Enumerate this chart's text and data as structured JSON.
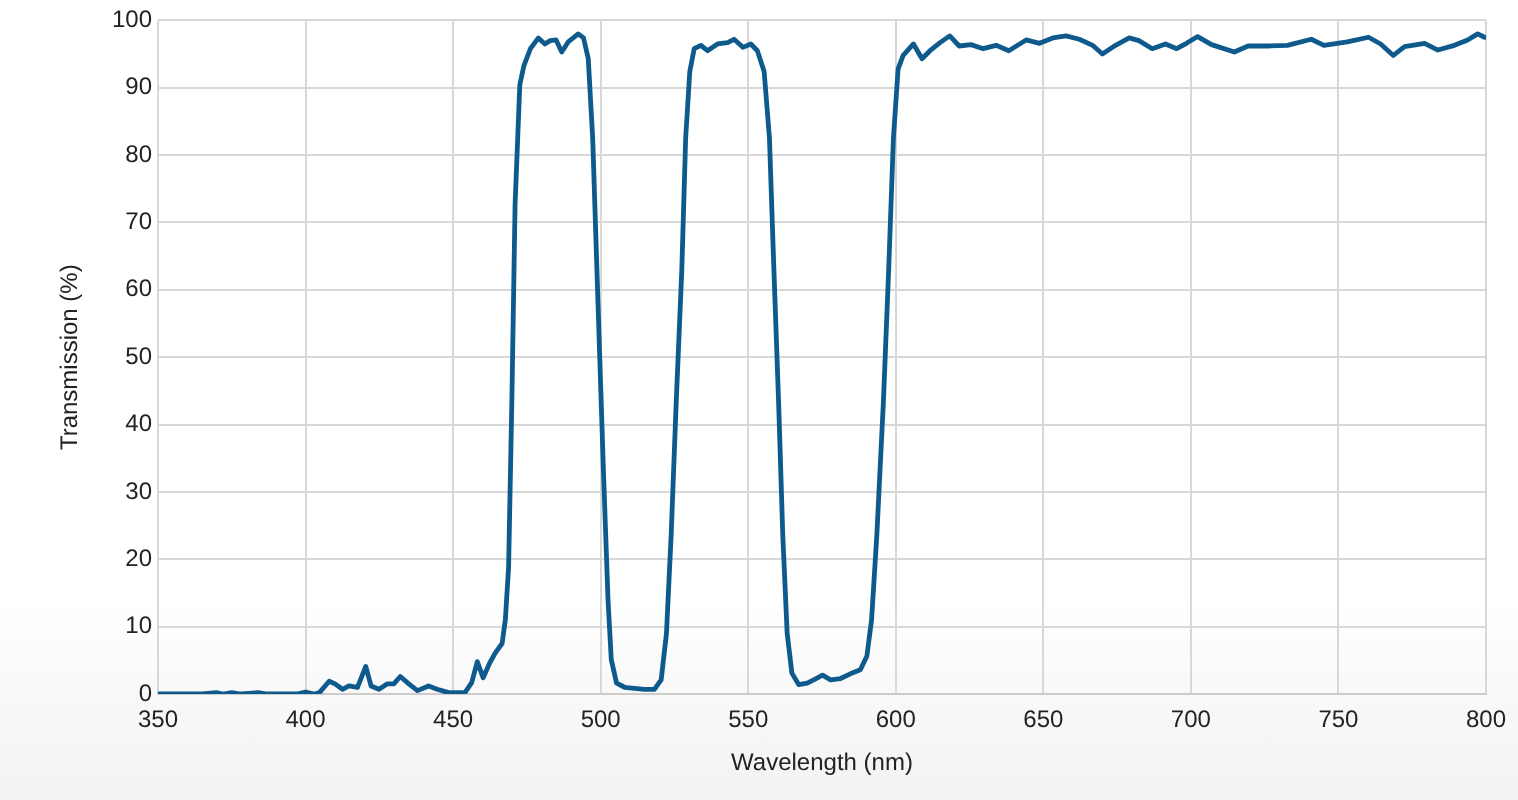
{
  "chart_data": {
    "type": "line",
    "xlabel": "Wavelength (nm)",
    "ylabel": "Transmission (%)",
    "x": [
      350,
      365,
      369.8,
      372,
      375,
      378,
      384,
      387,
      397,
      400,
      403,
      404.7,
      408,
      410,
      412.5,
      414.7,
      417.6,
      420.4,
      422.2,
      424.9,
      427.6,
      429.9,
      432.1,
      435,
      437.9,
      441.7,
      444.6,
      448.5,
      454,
      456.3,
      458.2,
      460.2,
      462.4,
      464.3,
      466.6,
      467.7,
      468.8,
      469.9,
      471,
      472.6,
      474,
      476.2,
      478.9,
      481.1,
      482.9,
      484.9,
      486.8,
      489,
      492.4,
      494.2,
      495.8,
      497.3,
      499.1,
      500.9,
      502.5,
      503.6,
      505.4,
      508.1,
      514.9,
      518.2,
      520.5,
      522.3,
      523.9,
      525.6,
      527.5,
      528.8,
      530.2,
      531.7,
      534,
      536.2,
      539.6,
      543,
      545.2,
      548.2,
      550.9,
      553.1,
      555.4,
      557.2,
      558.7,
      560.3,
      561.7,
      563.2,
      564.8,
      567.1,
      570,
      572.2,
      575.2,
      577.9,
      581.3,
      584.6,
      588,
      590.2,
      591.8,
      593.6,
      595.8,
      597.6,
      599.2,
      600.8,
      602.5,
      606,
      608.9,
      611.6,
      615,
      618.3,
      621.5,
      625.5,
      629.6,
      634,
      638.3,
      644.2,
      648.7,
      653.2,
      657.7,
      662.2,
      666.7,
      670,
      674.5,
      679.1,
      682.4,
      686.9,
      691.4,
      695.2,
      698.5,
      702.3,
      707,
      714.7,
      719.4,
      726,
      732.7,
      740.8,
      745.1,
      753,
      760.2,
      764.3,
      768.6,
      772.4,
      779.2,
      783.7,
      789.3,
      793.8,
      797.2,
      799.5
    ],
    "values": [
      0,
      0,
      0.2,
      0,
      0.2,
      0,
      0.2,
      0,
      0,
      0.3,
      0,
      0.2,
      1.9,
      1.5,
      0.7,
      1.2,
      1.0,
      4.1,
      1.2,
      0.7,
      1.5,
      1.5,
      2.6,
      1.5,
      0.5,
      1.2,
      0.7,
      0.2,
      0.2,
      1.7,
      4.8,
      2.4,
      4.6,
      6.1,
      7.5,
      11,
      18.8,
      43.3,
      72.7,
      90.4,
      93.3,
      95.8,
      97.4,
      96.5,
      97.0,
      97.1,
      95.3,
      96.8,
      98.0,
      97.4,
      94.3,
      82.5,
      58,
      33.6,
      13.9,
      5.1,
      1.6,
      1.0,
      0.7,
      0.7,
      2.1,
      9,
      23.7,
      43.3,
      63,
      82.5,
      92.4,
      95.8,
      96.3,
      95.5,
      96.5,
      96.7,
      97.2,
      96.0,
      96.5,
      95.5,
      92.4,
      82.5,
      63,
      43.3,
      23.7,
      9,
      3.1,
      1.4,
      1.6,
      2.1,
      2.8,
      2.1,
      2.3,
      3.0,
      3.6,
      5.6,
      11,
      23.7,
      43.3,
      63,
      82.5,
      92.8,
      94.8,
      96.5,
      94.3,
      95.5,
      96.7,
      97.7,
      96.2,
      96.4,
      95.8,
      96.3,
      95.5,
      97.1,
      96.6,
      97.4,
      97.7,
      97.2,
      96.3,
      95.0,
      96.3,
      97.4,
      97.0,
      95.8,
      96.5,
      95.8,
      96.6,
      97.6,
      96.4,
      95.3,
      96.2,
      96.2,
      96.3,
      97.2,
      96.3,
      96.8,
      97.5,
      96.5,
      94.8,
      96.1,
      96.6,
      95.6,
      96.3,
      97.1,
      98.0,
      97.5
    ],
    "color": "#0f5a8c",
    "xlim": [
      350,
      800
    ],
    "ylim": [
      0,
      100
    ],
    "xticks": [
      350,
      400,
      450,
      500,
      550,
      600,
      650,
      700,
      750,
      800
    ],
    "yticks": [
      0,
      10,
      20,
      30,
      40,
      50,
      60,
      70,
      80,
      90,
      100
    ],
    "grid": true,
    "line_style": "solid"
  }
}
